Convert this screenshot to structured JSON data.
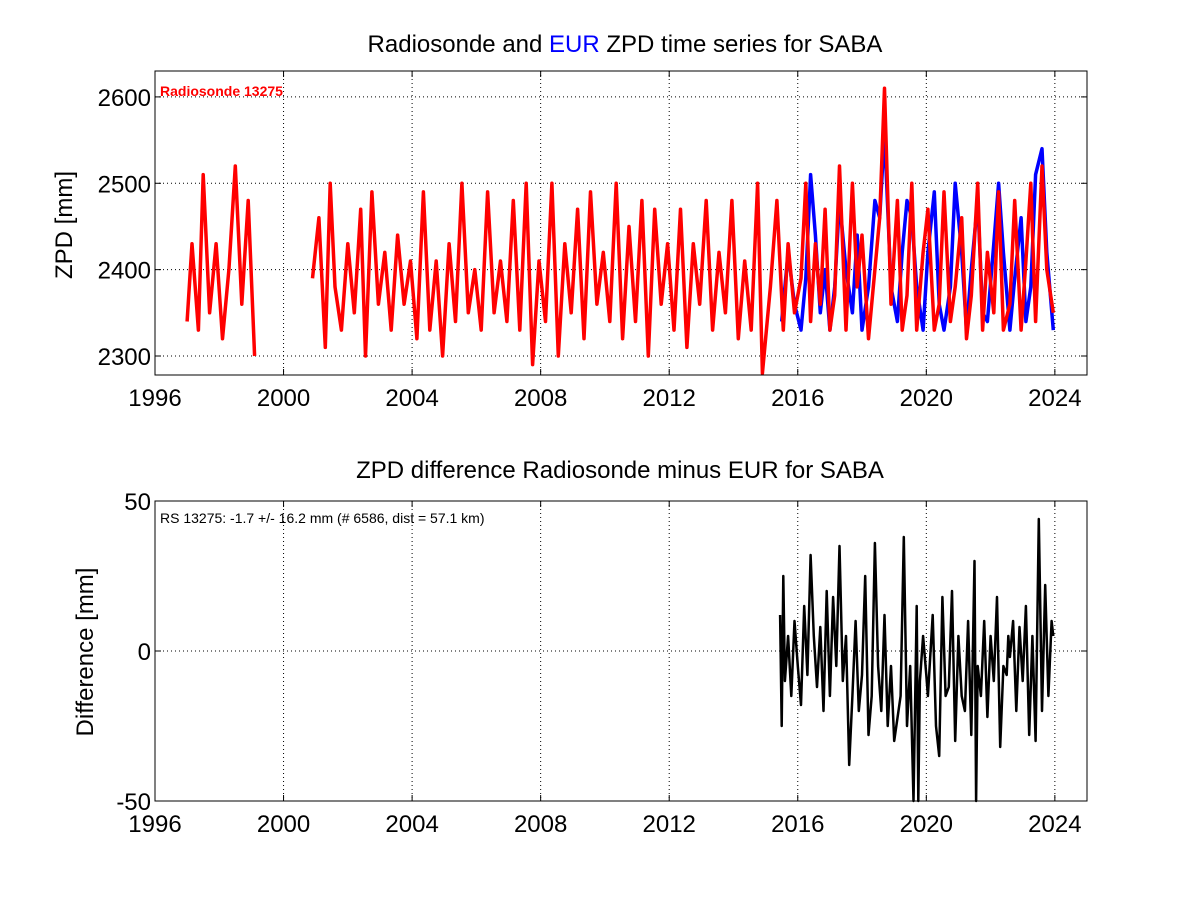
{
  "chart_data": [
    {
      "type": "line",
      "title_parts": [
        {
          "text": "Radiosonde and ",
          "color": "#000000"
        },
        {
          "text": "EUR",
          "color": "#0000ff"
        },
        {
          "text": " ZPD time series for SABA",
          "color": "#000000"
        }
      ],
      "xlabel": "",
      "ylabel": "ZPD [mm]",
      "xlim": [
        1996,
        2025
      ],
      "ylim": [
        2278,
        2630
      ],
      "xticks": [
        1996,
        2000,
        2004,
        2008,
        2012,
        2016,
        2020,
        2024
      ],
      "yticks": [
        2300,
        2400,
        2500,
        2600
      ],
      "grid": true,
      "annotation": {
        "text": "Radiosonde 13275",
        "color": "#ff0000"
      },
      "series": [
        {
          "color": "#0000ff",
          "x": [
            2015.5,
            2015.7,
            2015.9,
            2016.1,
            2016.25,
            2016.4,
            2016.55,
            2016.7,
            2016.85,
            2017.0,
            2017.15,
            2017.3,
            2017.5,
            2017.7,
            2017.85,
            2018.0,
            2018.2,
            2018.4,
            2018.55,
            2018.7,
            2018.9,
            2019.1,
            2019.25,
            2019.4,
            2019.55,
            2019.7,
            2019.9,
            2020.05,
            2020.25,
            2020.4,
            2020.55,
            2020.75,
            2020.9,
            2021.1,
            2021.25,
            2021.4,
            2021.6,
            2021.75,
            2021.9,
            2022.1,
            2022.25,
            2022.4,
            2022.6,
            2022.75,
            2022.95,
            2023.1,
            2023.25,
            2023.4,
            2023.6,
            2023.75,
            2023.95
          ],
          "y": [
            2340,
            2420,
            2360,
            2330,
            2390,
            2510,
            2440,
            2350,
            2400,
            2330,
            2380,
            2480,
            2400,
            2350,
            2440,
            2330,
            2380,
            2480,
            2460,
            2560,
            2380,
            2340,
            2420,
            2480,
            2460,
            2380,
            2330,
            2420,
            2490,
            2360,
            2330,
            2380,
            2500,
            2420,
            2330,
            2400,
            2480,
            2350,
            2340,
            2430,
            2500,
            2420,
            2330,
            2390,
            2460,
            2340,
            2380,
            2510,
            2540,
            2420,
            2330
          ]
        },
        {
          "color": "#ff0000",
          "x": [
            1997.0,
            1997.15,
            1997.35,
            1997.5,
            1997.7,
            1997.9,
            1998.1,
            1998.3,
            1998.5,
            1998.7,
            1998.9,
            1999.1,
            2000.9,
            2001.1,
            2001.3,
            2001.45,
            2001.6,
            2001.8,
            2002.0,
            2002.2,
            2002.4,
            2002.55,
            2002.75,
            2002.95,
            2003.15,
            2003.35,
            2003.55,
            2003.75,
            2003.95,
            2004.15,
            2004.35,
            2004.55,
            2004.75,
            2004.95,
            2005.15,
            2005.35,
            2005.55,
            2005.75,
            2005.95,
            2006.15,
            2006.35,
            2006.55,
            2006.75,
            2006.95,
            2007.15,
            2007.35,
            2007.55,
            2007.75,
            2007.95,
            2008.15,
            2008.35,
            2008.55,
            2008.75,
            2008.95,
            2009.15,
            2009.35,
            2009.55,
            2009.75,
            2009.95,
            2010.15,
            2010.35,
            2010.55,
            2010.75,
            2010.95,
            2011.15,
            2011.35,
            2011.55,
            2011.75,
            2011.95,
            2012.15,
            2012.35,
            2012.55,
            2012.75,
            2012.95,
            2013.15,
            2013.35,
            2013.55,
            2013.75,
            2013.95,
            2014.15,
            2014.35,
            2014.55,
            2014.75,
            2014.9,
            2015.15,
            2015.35,
            2015.55,
            2015.7,
            2015.9,
            2016.1,
            2016.25,
            2016.4,
            2016.55,
            2016.7,
            2016.85,
            2017.0,
            2017.15,
            2017.3,
            2017.5,
            2017.7,
            2017.85,
            2018.0,
            2018.2,
            2018.4,
            2018.55,
            2018.7,
            2018.9,
            2019.1,
            2019.25,
            2019.4,
            2019.55,
            2019.7,
            2019.9,
            2020.05,
            2020.25,
            2020.4,
            2020.55,
            2020.75,
            2020.9,
            2021.1,
            2021.25,
            2021.4,
            2021.6,
            2021.75,
            2021.9,
            2022.1,
            2022.25,
            2022.4,
            2022.6,
            2022.75,
            2022.95,
            2023.1,
            2023.25,
            2023.4,
            2023.6,
            2023.75,
            2023.95
          ],
          "y": [
            2340,
            2430,
            2330,
            2510,
            2350,
            2430,
            2320,
            2400,
            2520,
            2360,
            2480,
            2300,
            2390,
            2460,
            2310,
            2500,
            2380,
            2330,
            2430,
            2350,
            2470,
            2300,
            2490,
            2360,
            2420,
            2330,
            2440,
            2360,
            2410,
            2320,
            2490,
            2330,
            2410,
            2300,
            2430,
            2340,
            2500,
            2350,
            2400,
            2330,
            2490,
            2350,
            2410,
            2340,
            2480,
            2330,
            2500,
            2290,
            2410,
            2340,
            2500,
            2300,
            2430,
            2350,
            2470,
            2320,
            2490,
            2360,
            2420,
            2340,
            2500,
            2320,
            2450,
            2340,
            2480,
            2300,
            2470,
            2360,
            2430,
            2330,
            2470,
            2310,
            2430,
            2360,
            2480,
            2330,
            2420,
            2350,
            2480,
            2320,
            2410,
            2330,
            2500,
            2280,
            2380,
            2480,
            2330,
            2430,
            2350,
            2390,
            2500,
            2340,
            2430,
            2360,
            2470,
            2330,
            2370,
            2520,
            2330,
            2500,
            2380,
            2440,
            2320,
            2400,
            2460,
            2610,
            2360,
            2480,
            2330,
            2370,
            2500,
            2330,
            2420,
            2470,
            2330,
            2360,
            2490,
            2340,
            2380,
            2460,
            2320,
            2370,
            2500,
            2330,
            2420,
            2350,
            2490,
            2330,
            2360,
            2480,
            2330,
            2410,
            2500,
            2340,
            2520,
            2400,
            2350
          ]
        }
      ]
    },
    {
      "type": "line",
      "title": "ZPD difference Radiosonde minus EUR for SABA",
      "xlabel": "",
      "ylabel": "Difference [mm]",
      "xlim": [
        1996,
        2025
      ],
      "ylim": [
        -50,
        50
      ],
      "xticks": [
        1996,
        2000,
        2004,
        2008,
        2012,
        2016,
        2020,
        2024
      ],
      "yticks": [
        -50,
        0,
        50
      ],
      "grid": true,
      "annotation": {
        "text": "RS 13275: -1.7 +/- 16.2 mm (# 6586, dist =  57.1 km)",
        "color": "#000000"
      },
      "series": [
        {
          "color": "#000000",
          "x": [
            2015.45,
            2015.5,
            2015.55,
            2015.6,
            2015.7,
            2015.8,
            2015.9,
            2016.0,
            2016.1,
            2016.2,
            2016.3,
            2016.4,
            2016.5,
            2016.6,
            2016.7,
            2016.8,
            2016.9,
            2017.0,
            2017.1,
            2017.2,
            2017.3,
            2017.4,
            2017.5,
            2017.6,
            2017.7,
            2017.8,
            2017.9,
            2018.0,
            2018.1,
            2018.2,
            2018.3,
            2018.4,
            2018.5,
            2018.6,
            2018.7,
            2018.8,
            2018.9,
            2019.0,
            2019.2,
            2019.3,
            2019.4,
            2019.5,
            2019.6,
            2019.7,
            2019.75,
            2019.8,
            2019.9,
            2020.0,
            2020.05,
            2020.2,
            2020.3,
            2020.4,
            2020.5,
            2020.6,
            2020.7,
            2020.8,
            2020.9,
            2021.0,
            2021.1,
            2021.2,
            2021.3,
            2021.4,
            2021.5,
            2021.55,
            2021.6,
            2021.7,
            2021.8,
            2021.9,
            2022.0,
            2022.1,
            2022.2,
            2022.3,
            2022.4,
            2022.5,
            2022.55,
            2022.6,
            2022.7,
            2022.8,
            2022.9,
            2023.0,
            2023.1,
            2023.2,
            2023.3,
            2023.4,
            2023.5,
            2023.6,
            2023.7,
            2023.8,
            2023.9,
            2023.95
          ],
          "y": [
            12,
            -25,
            25,
            -10,
            5,
            -15,
            10,
            -5,
            -18,
            15,
            -8,
            32,
            5,
            -12,
            8,
            -20,
            20,
            -15,
            18,
            -5,
            35,
            -10,
            5,
            -38,
            -15,
            10,
            -20,
            -8,
            25,
            -28,
            -15,
            36,
            -5,
            -20,
            12,
            -25,
            -5,
            -30,
            -15,
            38,
            -25,
            -5,
            -52,
            15,
            -60,
            -10,
            5,
            -8,
            -15,
            12,
            -25,
            -35,
            18,
            -15,
            -12,
            20,
            -30,
            5,
            -15,
            -20,
            10,
            -28,
            30,
            -55,
            -5,
            -15,
            10,
            -22,
            5,
            -10,
            18,
            -32,
            -5,
            -8,
            5,
            -2,
            10,
            -20,
            8,
            -10,
            15,
            -28,
            5,
            -30,
            44,
            -20,
            22,
            -15,
            10,
            5
          ]
        }
      ]
    }
  ]
}
